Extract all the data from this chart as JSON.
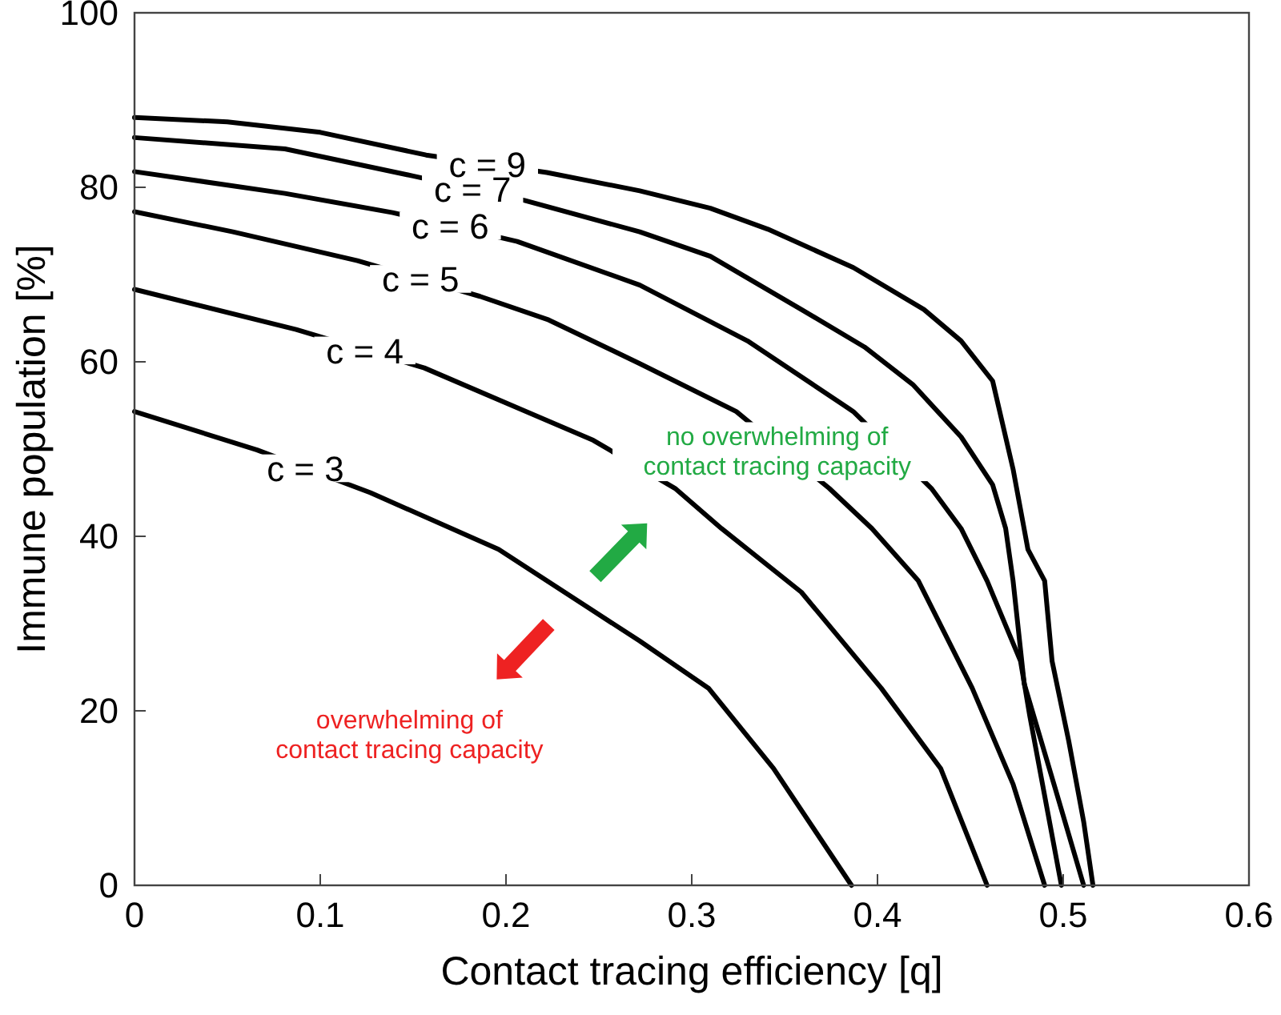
{
  "chart_data": {
    "type": "line",
    "xlabel": "Contact tracing efficiency [q]",
    "ylabel": "Immune population [%]",
    "xlim": [
      0,
      0.6
    ],
    "ylim": [
      0,
      100
    ],
    "xticks": [
      0,
      0.1,
      0.2,
      0.3,
      0.4,
      0.5,
      0.6
    ],
    "yticks": [
      0,
      20,
      40,
      60,
      80,
      100
    ],
    "grid": false,
    "marker": "none",
    "line_style": "solid",
    "series": [
      {
        "color": "#000000",
        "x": [
          0,
          0.05,
          0.1,
          0.157,
          0.222,
          0.272,
          0.31,
          0.341,
          0.387,
          0.425,
          0.445,
          0.462,
          0.473,
          0.481,
          0.49,
          0.494,
          0.503,
          0.511,
          0.516
        ],
        "values": [
          88,
          87.5,
          86.3,
          83.7,
          81.7,
          79.6,
          77.6,
          75.2,
          70.8,
          66,
          62.4,
          57.8,
          47.7,
          38.5,
          34.9,
          25.7,
          16.5,
          7.3,
          0
        ]
      },
      {
        "color": "#000000",
        "x": [
          0,
          0.081,
          0.15,
          0.21,
          0.272,
          0.31,
          0.359,
          0.393,
          0.419,
          0.445,
          0.462,
          0.469,
          0.473,
          0.479,
          0.495,
          0.511
        ],
        "values": [
          85.7,
          84.4,
          81.3,
          78.5,
          74.9,
          72.1,
          66,
          61.7,
          57.4,
          51.4,
          45.9,
          40.9,
          34.9,
          23.1,
          11.6,
          0
        ]
      },
      {
        "color": "#000000",
        "x": [
          0,
          0.081,
          0.139,
          0.206,
          0.272,
          0.33,
          0.387,
          0.429,
          0.445,
          0.459,
          0.477,
          0.482,
          0.499
        ],
        "values": [
          81.8,
          79.3,
          77.1,
          73.8,
          68.8,
          62.4,
          54.3,
          45.5,
          40.9,
          34.9,
          25.7,
          19.4,
          0
        ]
      },
      {
        "color": "#000000",
        "x": [
          0,
          0.053,
          0.12,
          0.186,
          0.223,
          0.272,
          0.324,
          0.374,
          0.397,
          0.422,
          0.451,
          0.473,
          0.49
        ],
        "values": [
          77.2,
          74.9,
          71.6,
          67.5,
          64.8,
          59.8,
          54.3,
          45.5,
          40.9,
          34.9,
          22.6,
          11.6,
          0
        ]
      },
      {
        "color": "#000000",
        "x": [
          0,
          0.087,
          0.156,
          0.247,
          0.291,
          0.316,
          0.359,
          0.402,
          0.434,
          0.459
        ],
        "values": [
          68.3,
          63.7,
          59.3,
          51,
          45.5,
          40.9,
          33.6,
          22.6,
          13.4,
          0
        ]
      },
      {
        "color": "#000000",
        "x": [
          0,
          0.066,
          0.127,
          0.196,
          0.272,
          0.309,
          0.344,
          0.386
        ],
        "values": [
          54.3,
          49.9,
          45,
          38.5,
          28,
          22.6,
          13.4,
          0
        ]
      }
    ],
    "annotations": [
      {
        "text": "c = 9",
        "x": 0.19,
        "y": 82.7
      },
      {
        "text": "c = 7",
        "x": 0.182,
        "y": 79.8
      },
      {
        "text": "c = 6",
        "x": 0.17,
        "y": 75.6
      },
      {
        "text": "c = 5",
        "x": 0.154,
        "y": 69.5
      },
      {
        "text": "c = 4",
        "x": 0.124,
        "y": 61.3
      },
      {
        "text": "c = 3",
        "x": 0.092,
        "y": 47.8
      },
      "no overwhelming of\ncontact tracing capacity",
      "overwhelming of\ncontact tracing capacity"
    ]
  }
}
